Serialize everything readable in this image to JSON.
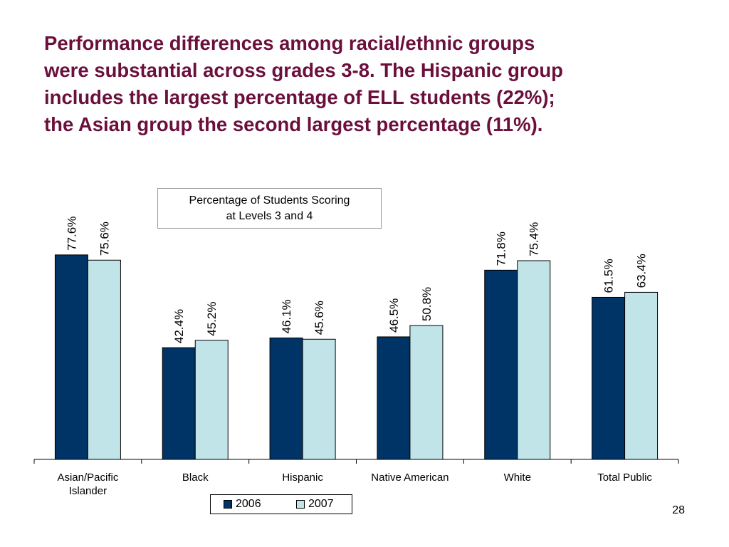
{
  "slide": {
    "headline_lines": [
      "Performance differences among racial/ethnic groups",
      "were substantial across grades 3-8. The Hispanic group",
      "includes the largest percentage of ELL students (22%);",
      "the Asian group the second largest percentage (11%)."
    ],
    "page_number": "28"
  },
  "colors": {
    "headline": "#6b0f3c",
    "series_2006": "#003366",
    "series_2007": "#c0e4e8"
  },
  "chart_data": {
    "type": "bar",
    "title_lines": [
      "Percentage of Students Scoring",
      "at Levels 3 and 4"
    ],
    "categories": [
      "Asian/Pacific Islander",
      "Black",
      "Hispanic",
      "Native American",
      "White",
      "Total Public"
    ],
    "category_label_lines": [
      [
        "Asian/Pacific",
        "Islander"
      ],
      [
        "Black"
      ],
      [
        "Hispanic"
      ],
      [
        "Native American"
      ],
      [
        "White"
      ],
      [
        "Total Public"
      ]
    ],
    "series": [
      {
        "name": "2006",
        "values": [
          77.6,
          42.4,
          46.1,
          46.5,
          71.8,
          61.5
        ],
        "labels": [
          "77.6%",
          "42.4%",
          "46.1%",
          "46.5%",
          "71.8%",
          "61.5%"
        ]
      },
      {
        "name": "2007",
        "values": [
          75.6,
          45.2,
          45.6,
          50.8,
          75.4,
          63.4
        ],
        "labels": [
          "75.6%",
          "45.2%",
          "45.6%",
          "50.8%",
          "75.4%",
          "63.4%"
        ]
      }
    ],
    "ylim": [
      0,
      100
    ],
    "grid": false,
    "legend_position": "bottom"
  }
}
